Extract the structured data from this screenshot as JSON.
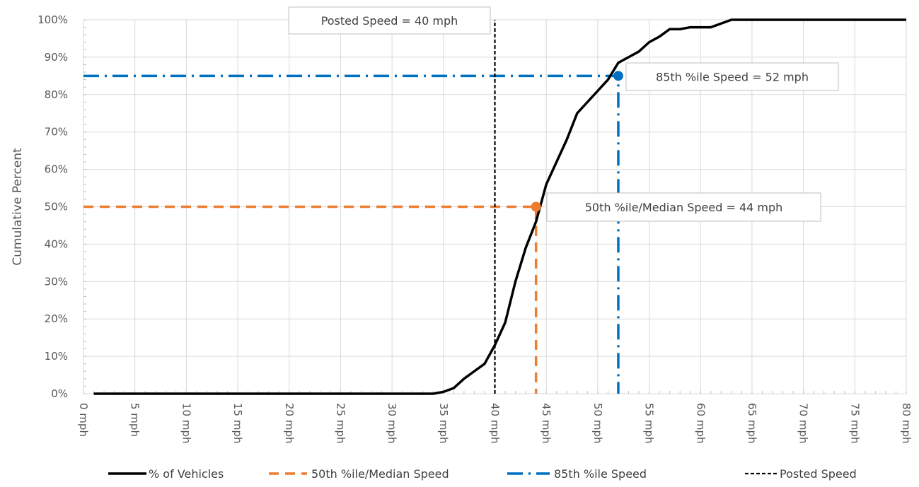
{
  "chart_data": {
    "type": "line",
    "title": "",
    "xlabel": "",
    "ylabel": "Cumulative Percent",
    "xlim": [
      0,
      80
    ],
    "ylim": [
      0,
      100
    ],
    "grid": true,
    "legend_placement": "bottom",
    "x_ticks": [
      "0 mph",
      "5 mph",
      "10 mph",
      "15 mph",
      "20 mph",
      "25 mph",
      "30 mph",
      "35 mph",
      "40 mph",
      "45 mph",
      "50 mph",
      "55 mph",
      "60 mph",
      "65 mph",
      "70 mph",
      "75 mph",
      "80 mph"
    ],
    "y_ticks": [
      "0%",
      "10%",
      "20%",
      "30%",
      "40%",
      "50%",
      "60%",
      "70%",
      "80%",
      "90%",
      "100%"
    ],
    "series": [
      {
        "name": "% of Vehicles",
        "color": "#000000",
        "style": "solid",
        "x": [
          1,
          34,
          35,
          36,
          37,
          38,
          39,
          40,
          41,
          42,
          43,
          44,
          45,
          46,
          47,
          48,
          49,
          50,
          51,
          52,
          53,
          54,
          55,
          56,
          57,
          58,
          59,
          60,
          61,
          62,
          63,
          80
        ],
        "y": [
          0,
          0,
          0.5,
          1.5,
          4,
          6,
          8,
          13,
          19,
          30,
          39,
          46,
          56,
          62,
          68,
          75,
          78,
          81,
          84,
          88.5,
          90,
          91.5,
          94,
          95.5,
          97.5,
          97.5,
          98,
          98,
          98,
          99,
          100,
          100
        ]
      },
      {
        "name": "50th %ile/Median Speed",
        "color": "#ED7D31",
        "style": "dashed",
        "x": [
          0,
          44,
          44
        ],
        "y": [
          50,
          50,
          0
        ]
      },
      {
        "name": "85th %ile Speed",
        "color": "#0070C0",
        "style": "dash-dot",
        "x": [
          0,
          52,
          52
        ],
        "y": [
          85,
          85,
          0
        ]
      },
      {
        "name": "Posted Speed",
        "color": "#000000",
        "style": "dotted",
        "x": [
          40,
          40
        ],
        "y": [
          0,
          100
        ]
      }
    ],
    "annotations": [
      {
        "text": "Posted Speed = 40 mph",
        "x": 40,
        "y": 100
      },
      {
        "text": "85th %ile Speed = 52 mph",
        "x": 52,
        "y": 85
      },
      {
        "text": "50th %ile/Median Speed = 44 mph",
        "x": 44,
        "y": 50
      }
    ]
  }
}
